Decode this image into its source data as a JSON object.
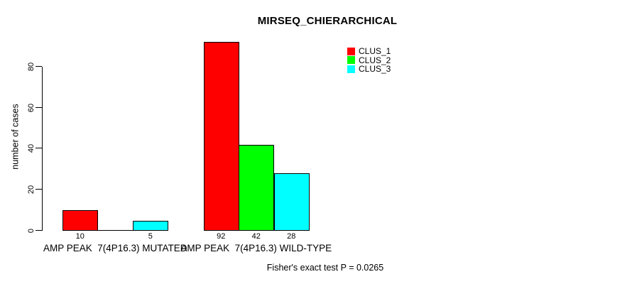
{
  "chart_data": {
    "type": "bar",
    "title": "MIRSEQ_CHIERARCHICAL",
    "ylabel": "number of cases",
    "xlabel": "",
    "yticks": [
      0,
      20,
      40,
      60,
      80
    ],
    "ylim": [
      0,
      92
    ],
    "grid": false,
    "legend_position": "top-right",
    "categories": [
      "AMP PEAK  7(4P16.3) MUTATED",
      "AMP PEAK  7(4P16.3) WILD-TYPE"
    ],
    "series": [
      {
        "name": "CLUS_1",
        "color": "#FF0000",
        "values": [
          10,
          92
        ]
      },
      {
        "name": "CLUS_2",
        "color": "#00FF00",
        "values": [
          0,
          42
        ]
      },
      {
        "name": "CLUS_3",
        "color": "#00FFFF",
        "values": [
          5,
          28
        ]
      }
    ],
    "bar_value_labels": {
      "shown": [
        "10",
        "5",
        "92",
        "42",
        "28"
      ],
      "zeros_hidden": true
    },
    "annotation": "Fisher's exact test P = 0.0265",
    "colors": {
      "background": "#FFFFFF",
      "bar_border": "#000000",
      "text": "#000000"
    }
  }
}
